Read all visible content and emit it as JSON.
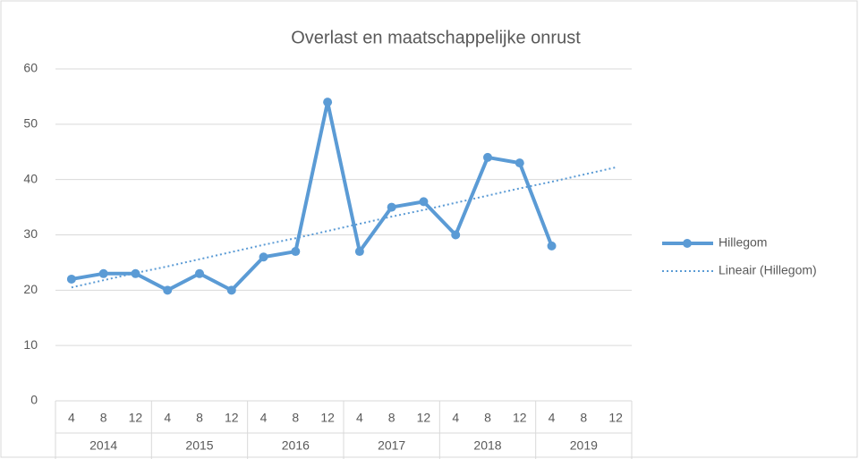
{
  "chart_data": {
    "type": "line",
    "title": "Overlast en maatschappelijke onrust",
    "categories": [
      "4",
      "8",
      "12",
      "4",
      "8",
      "12",
      "4",
      "8",
      "12",
      "4",
      "8",
      "12",
      "4",
      "8",
      "12",
      "4",
      "8",
      "12"
    ],
    "category_groups": [
      "2014",
      "2015",
      "2016",
      "2017",
      "2018",
      "2019"
    ],
    "series": [
      {
        "name": "Hillegom",
        "color": "#5b9bd5",
        "style": "solid",
        "markers": true,
        "values": [
          22,
          23,
          23,
          20,
          23,
          20,
          26,
          27,
          54,
          27,
          35,
          36,
          30,
          44,
          43,
          28,
          null,
          null
        ]
      },
      {
        "name": "Lineair (Hillegom)",
        "color": "#5b9bd5",
        "style": "dotted",
        "markers": false,
        "values": [
          20.5,
          21.8,
          23.1,
          24.3,
          25.6,
          26.9,
          28.2,
          29.4,
          30.7,
          32.0,
          33.3,
          34.5,
          35.8,
          37.1,
          38.4,
          39.6,
          40.9,
          42.2
        ]
      }
    ],
    "ylim": [
      0,
      60
    ],
    "yticks": [
      0,
      10,
      20,
      30,
      40,
      50,
      60
    ],
    "grid": true,
    "legend": "right"
  }
}
